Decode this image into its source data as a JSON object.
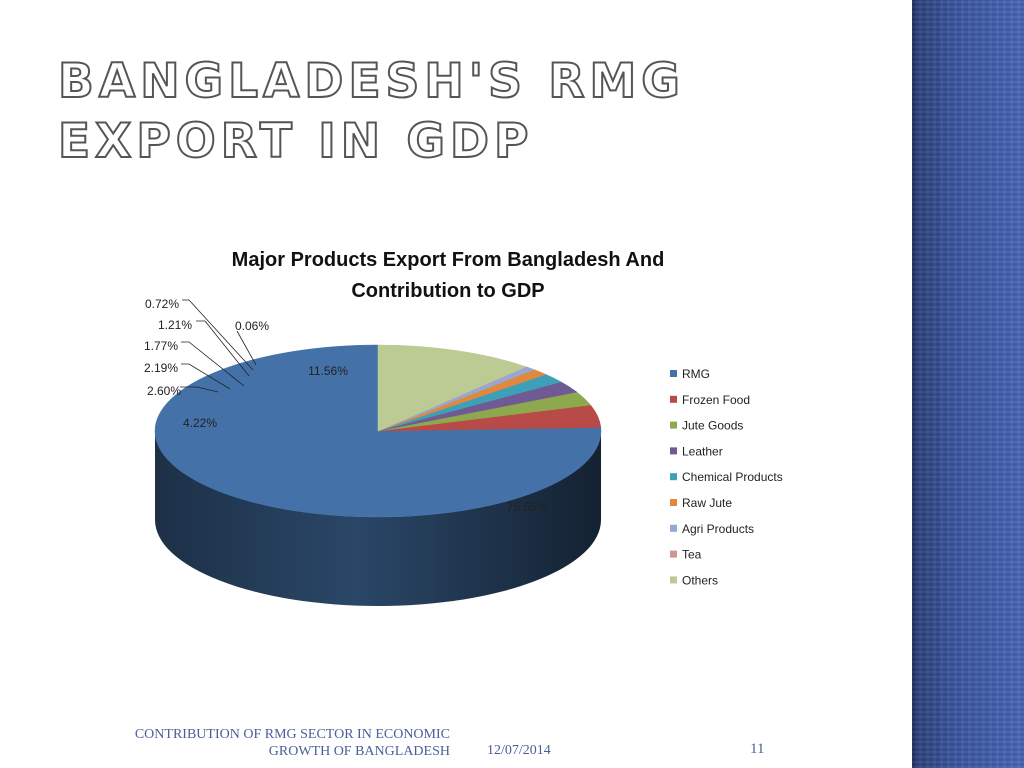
{
  "slide": {
    "title": "Bangladesh's RMG export in GDP",
    "footer_text": "Contribution of RMG sector in economic growth of Bangladesh",
    "footer_date": "12/07/2014",
    "page_number": "11",
    "accent_color": "#3a55a0"
  },
  "chart_data": {
    "type": "pie",
    "title": "Major Products Export From Bangladesh And Contribution to GDP",
    "title_lines": [
      "Major Products Export From Bangladesh And",
      "Contribution to GDP"
    ],
    "three_d": true,
    "legend_position": "right",
    "slices": [
      {
        "name": "RMG",
        "value": 75.65,
        "label": "75.65%",
        "color": "#4472a8"
      },
      {
        "name": "Frozen Food",
        "value": 4.22,
        "label": "4.22%",
        "color": "#b84a47"
      },
      {
        "name": "Jute Goods",
        "value": 2.6,
        "label": "2.60%",
        "color": "#8ea84e"
      },
      {
        "name": "Leather",
        "value": 2.19,
        "label": "2.19%",
        "color": "#6f5a93"
      },
      {
        "name": "Chemical Products",
        "value": 1.77,
        "label": "1.77%",
        "color": "#3ea0b8"
      },
      {
        "name": "Raw Jute",
        "value": 1.21,
        "label": "1.21%",
        "color": "#e0883d"
      },
      {
        "name": "Agri Products",
        "value": 0.72,
        "label": "0.72%",
        "color": "#93a9d4"
      },
      {
        "name": "Tea",
        "value": 0.06,
        "label": "0.06%",
        "color": "#d39593"
      },
      {
        "name": "Others",
        "value": 11.56,
        "label": "11.56%",
        "color": "#bccb94"
      }
    ]
  }
}
